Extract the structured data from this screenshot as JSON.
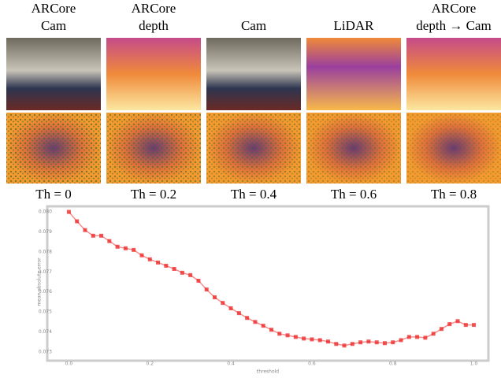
{
  "figure": {
    "columns": [
      [
        "ARCore",
        "Cam"
      ],
      [
        "ARCore",
        "depth"
      ],
      [
        "",
        "Cam"
      ],
      [
        "",
        "LiDAR"
      ],
      [
        "ARCore",
        "depth → Cam"
      ]
    ],
    "thresholds": [
      "Th = 0",
      "Th = 0.2",
      "Th = 0.4",
      "Th = 0.6",
      "Th = 0.8"
    ]
  },
  "chart_data": {
    "type": "line",
    "xlabel": "threshold",
    "ylabel": "mean absolute error",
    "x": [
      0,
      0.02,
      0.04,
      0.06,
      0.08,
      0.1,
      0.12,
      0.14,
      0.16,
      0.18,
      0.2,
      0.22,
      0.24,
      0.26,
      0.28,
      0.3,
      0.32,
      0.34,
      0.36,
      0.38,
      0.4,
      0.42,
      0.44,
      0.46,
      0.48,
      0.5,
      0.52,
      0.54,
      0.56,
      0.58,
      0.6,
      0.62,
      0.64,
      0.66,
      0.68,
      0.7,
      0.72,
      0.74,
      0.76,
      0.78,
      0.8,
      0.82,
      0.84,
      0.86,
      0.88,
      0.9,
      0.92,
      0.94,
      0.96,
      0.98,
      1
    ],
    "series": [
      {
        "color": "#ee2020",
        "values": [
          0.08,
          0.07953,
          0.07909,
          0.07881,
          0.07881,
          0.07854,
          0.07826,
          0.07818,
          0.0781,
          0.07783,
          0.07763,
          0.07747,
          0.07731,
          0.07715,
          0.07696,
          0.07684,
          0.07656,
          0.07612,
          0.07573,
          0.07545,
          0.07518,
          0.07494,
          0.0747,
          0.0745,
          0.07431,
          0.07411,
          0.07391,
          0.07383,
          0.07375,
          0.07367,
          0.07363,
          0.07359,
          0.07352,
          0.0734,
          0.07332,
          0.0734,
          0.07348,
          0.07352,
          0.07348,
          0.07344,
          0.07348,
          0.07359,
          0.07375,
          0.07375,
          0.07371,
          0.07391,
          0.07415,
          0.07439,
          0.07454,
          0.07435,
          0.07435
        ]
      }
    ],
    "xlim": [
      -0.03,
      1.03
    ],
    "ylim": [
      0.0728,
      0.0802
    ],
    "xticks": [
      {
        "value": 0,
        "label": "0.0"
      },
      0.2,
      0.4,
      0.6,
      0.8,
      {
        "value": 1,
        "label": "1.0"
      }
    ],
    "yticks": [
      0.073,
      0.074,
      0.075,
      0.076,
      0.077,
      0.078,
      0.079,
      {
        "value": 0.08,
        "label": "0.080"
      }
    ],
    "grid": false
  }
}
